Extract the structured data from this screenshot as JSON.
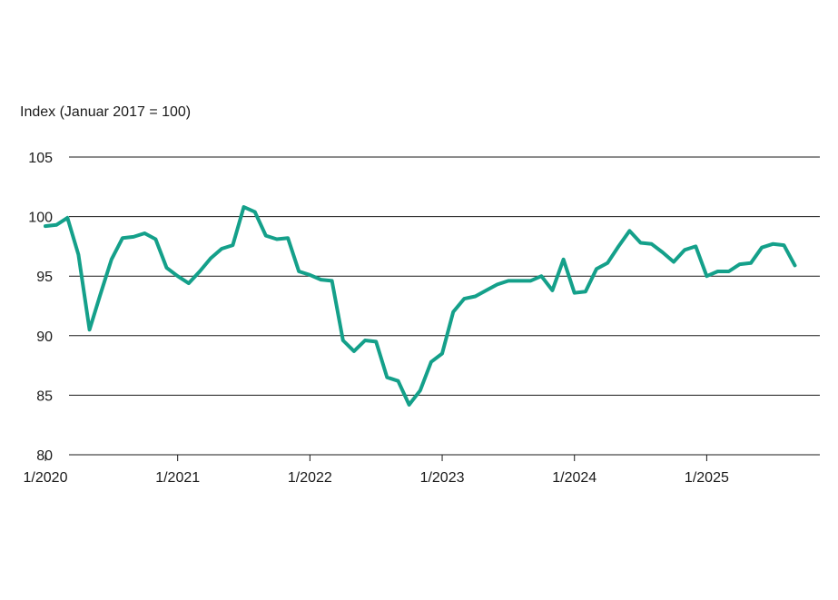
{
  "chart_data": {
    "type": "line",
    "ylabel": "Index (Januar 2017 = 100)",
    "ylim": [
      80,
      105
    ],
    "yticks": [
      80,
      85,
      90,
      95,
      100,
      105
    ],
    "xlim": [
      "2020-01",
      "2025-09"
    ],
    "xticks": [
      "1/2020",
      "1/2021",
      "1/2022",
      "1/2023",
      "1/2024",
      "1/2025"
    ],
    "grid": "horizontal",
    "color": "#14a08a",
    "series": [
      {
        "x": [
          "2020-01",
          "2020-02",
          "2020-03",
          "2020-04",
          "2020-05",
          "2020-06",
          "2020-07",
          "2020-08",
          "2020-09",
          "2020-10",
          "2020-11",
          "2020-12",
          "2021-01",
          "2021-02",
          "2021-03",
          "2021-04",
          "2021-05",
          "2021-06",
          "2021-07",
          "2021-08",
          "2021-09",
          "2021-10",
          "2021-11",
          "2021-12",
          "2022-01",
          "2022-02",
          "2022-03",
          "2022-04",
          "2022-05",
          "2022-06",
          "2022-07",
          "2022-08",
          "2022-09",
          "2022-10",
          "2022-11",
          "2022-12",
          "2023-01",
          "2023-02",
          "2023-03",
          "2023-04",
          "2023-05",
          "2023-06",
          "2023-07",
          "2023-08",
          "2023-09",
          "2023-10",
          "2023-11",
          "2023-12",
          "2024-01",
          "2024-02",
          "2024-03",
          "2024-04",
          "2024-05",
          "2024-06",
          "2024-07",
          "2024-08",
          "2024-09",
          "2024-10",
          "2024-11",
          "2024-12",
          "2025-01",
          "2025-02",
          "2025-03",
          "2025-04",
          "2025-05",
          "2025-06",
          "2025-07",
          "2025-08",
          "2025-09"
        ],
        "values": [
          99.2,
          99.3,
          99.9,
          96.8,
          90.5,
          93.5,
          96.4,
          98.2,
          98.3,
          98.6,
          98.1,
          95.7,
          95.0,
          94.4,
          95.4,
          96.5,
          97.3,
          97.6,
          100.8,
          100.4,
          98.4,
          98.1,
          98.2,
          95.4,
          95.1,
          94.7,
          94.6,
          89.6,
          88.7,
          89.6,
          89.5,
          86.5,
          86.2,
          84.2,
          85.4,
          87.8,
          88.5,
          92.0,
          93.1,
          93.3,
          93.8,
          94.3,
          94.6,
          94.6,
          94.6,
          95.0,
          93.8,
          96.4,
          93.6,
          93.7,
          95.6,
          96.1,
          97.5,
          98.8,
          97.8,
          97.7,
          97.0,
          96.2,
          97.2,
          97.5,
          95.0,
          95.4,
          95.4,
          96.0,
          96.1,
          97.4,
          97.7,
          97.6,
          95.9
        ]
      }
    ]
  }
}
